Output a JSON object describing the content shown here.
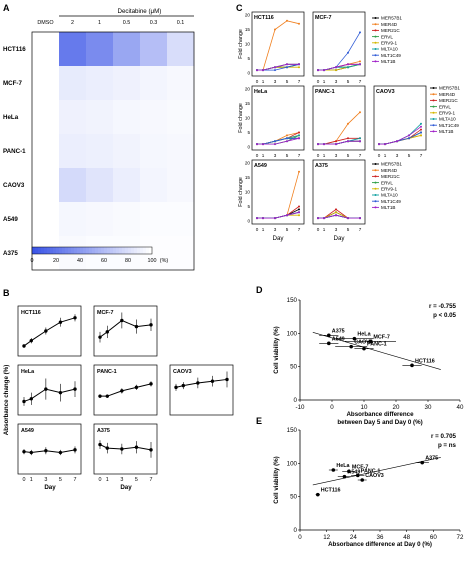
{
  "panel_labels": [
    "A",
    "B",
    "C",
    "D",
    "E"
  ],
  "colors": {
    "heat_high": "#3b55e6",
    "heat_low": "#ffffff",
    "series": [
      "#000000",
      "#f07f1e",
      "#cc2020",
      "#2e9e47",
      "#d4b800",
      "#0d9f9f",
      "#2f5bd6",
      "#a020c8"
    ]
  },
  "chart_data": [
    {
      "id": "A",
      "type": "heatmap",
      "xlabel": "Decitabine (μM)",
      "columns": [
        "DMSO",
        "2",
        "1",
        "0.5",
        "0.3",
        "0.1"
      ],
      "rows": [
        "HCT116",
        "MCF-7",
        "HeLa",
        "PANC-1",
        "CAOV3",
        "A549",
        "A375"
      ],
      "values": [
        [
          100,
          22,
          32,
          48,
          62,
          80
        ],
        [
          100,
          88,
          90,
          92,
          94,
          96
        ],
        [
          100,
          92,
          93,
          95,
          96,
          97
        ],
        [
          100,
          90,
          91,
          93,
          95,
          96
        ],
        [
          100,
          78,
          84,
          90,
          94,
          96
        ],
        [
          100,
          95,
          96,
          97,
          98,
          98
        ],
        [
          100,
          97,
          98,
          98,
          99,
          99
        ]
      ],
      "colorbar_ticks": [
        "0",
        "20",
        "40",
        "60",
        "80",
        "100"
      ],
      "colorbar_unit": "(%)",
      "colorbar_range": [
        0,
        100
      ]
    },
    {
      "id": "B",
      "type": "line",
      "ylabel": "Absorbance change (%)",
      "xlabel": "Day",
      "x": [
        0,
        1,
        3,
        5,
        7
      ],
      "x_ticks": [
        "0",
        "1",
        "3",
        "5",
        "7"
      ],
      "ylim": [
        0,
        50
      ],
      "y_ticks": [
        0,
        25,
        50
      ],
      "panels": [
        {
          "label": "HCT116",
          "values": [
            8,
            14,
            25,
            35,
            40
          ],
          "err": [
            2,
            3,
            4,
            5,
            4
          ]
        },
        {
          "label": "MCF-7",
          "values": [
            18,
            24,
            37,
            30,
            32
          ],
          "err": [
            6,
            7,
            9,
            8,
            7
          ]
        },
        {
          "label": "HeLa",
          "values": [
            12,
            15,
            26,
            22,
            26
          ],
          "err": [
            5,
            7,
            12,
            10,
            9
          ]
        },
        {
          "label": "PANC-1",
          "values": [
            18,
            18,
            24,
            28,
            32
          ],
          "err": [
            2,
            2,
            3,
            3,
            3
          ]
        },
        {
          "label": "CAOV3",
          "values": [
            28,
            30,
            33,
            35,
            37
          ],
          "err": [
            4,
            4,
            6,
            6,
            9
          ]
        },
        {
          "label": "A549",
          "values": [
            22,
            21,
            23,
            21,
            24
          ],
          "err": [
            3,
            3,
            4,
            3,
            4
          ]
        },
        {
          "label": "A375",
          "values": [
            30,
            26,
            25,
            27,
            24
          ],
          "err": [
            5,
            6,
            6,
            7,
            9
          ]
        }
      ]
    },
    {
      "id": "C",
      "type": "line",
      "ylabel": "Fold change",
      "xlabel": "Day",
      "x": [
        0,
        1,
        3,
        5,
        7
      ],
      "x_ticks": [
        "0",
        "1",
        "3",
        "5",
        "7"
      ],
      "y_ticks": [
        0,
        5,
        10,
        15,
        20
      ],
      "ylim": [
        0,
        20
      ],
      "legend": [
        "MER57B1",
        "MER4D",
        "MER21C",
        "ERVL",
        "ERV9-1",
        "MLTA10",
        "MLT1C49",
        "MLT1B"
      ],
      "panels": [
        {
          "label": "HCT116",
          "series": [
            [
              1,
              1,
              2,
              2,
              3
            ],
            [
              1,
              1,
              15,
              18,
              17
            ],
            [
              1,
              1,
              2,
              3,
              3
            ],
            [
              1,
              1,
              2,
              2,
              3
            ],
            [
              1,
              1,
              2,
              2,
              2
            ],
            [
              1,
              1,
              2,
              3,
              3
            ],
            [
              1,
              1,
              1,
              2,
              3
            ],
            [
              1,
              1,
              2,
              3,
              3
            ]
          ]
        },
        {
          "label": "MCF-7",
          "series": [
            [
              1,
              1,
              1,
              2,
              3
            ],
            [
              1,
              1,
              2,
              3,
              4
            ],
            [
              1,
              1,
              2,
              3,
              3
            ],
            [
              1,
              1,
              2,
              2,
              3
            ],
            [
              1,
              1,
              1,
              2,
              3
            ],
            [
              1,
              1,
              2,
              2,
              3
            ],
            [
              1,
              1,
              2,
              7,
              14
            ],
            [
              1,
              1,
              2,
              3,
              3
            ]
          ]
        },
        {
          "label": "HeLa",
          "series": [
            [
              1,
              1,
              2,
              3,
              3
            ],
            [
              1,
              1,
              2,
              4,
              5
            ],
            [
              1,
              1,
              2,
              3,
              5
            ],
            [
              1,
              1,
              1,
              2,
              4
            ],
            [
              1,
              1,
              2,
              3,
              4
            ],
            [
              1,
              1,
              2,
              3,
              4
            ],
            [
              1,
              1,
              2,
              3,
              3
            ],
            [
              1,
              1,
              1,
              2,
              3
            ]
          ]
        },
        {
          "label": "PANC-1",
          "series": [
            [
              1,
              1,
              1,
              2,
              2
            ],
            [
              1,
              1,
              2,
              8,
              12
            ],
            [
              1,
              1,
              2,
              3,
              3
            ],
            [
              1,
              1,
              1,
              2,
              2
            ],
            [
              1,
              1,
              1,
              2,
              2
            ],
            [
              1,
              1,
              1,
              2,
              3
            ],
            [
              1,
              1,
              1,
              2,
              2
            ],
            [
              1,
              1,
              1,
              2,
              2
            ]
          ]
        },
        {
          "label": "CAOV3",
          "series": [
            [
              1,
              1,
              2,
              3,
              5
            ],
            [
              1,
              1,
              2,
              3,
              4
            ],
            [
              1,
              1,
              2,
              3,
              6
            ],
            [
              1,
              1,
              2,
              3,
              5
            ],
            [
              1,
              1,
              2,
              3,
              4
            ],
            [
              1,
              1,
              2,
              4,
              8
            ],
            [
              1,
              1,
              2,
              3,
              5
            ],
            [
              1,
              1,
              2,
              4,
              7
            ]
          ]
        },
        {
          "label": "A549",
          "series": [
            [
              1,
              1,
              1,
              2,
              4
            ],
            [
              1,
              1,
              1,
              2,
              17
            ],
            [
              1,
              1,
              1,
              2,
              5
            ],
            [
              1,
              1,
              1,
              2,
              3
            ],
            [
              1,
              1,
              1,
              2,
              2
            ],
            [
              1,
              1,
              1,
              2,
              3
            ],
            [
              1,
              1,
              1,
              2,
              3
            ],
            [
              1,
              1,
              1,
              2,
              3
            ]
          ]
        },
        {
          "label": "A375",
          "series": [
            [
              1,
              1,
              3,
              1,
              1
            ],
            [
              1,
              1,
              2,
              1,
              1
            ],
            [
              1,
              1,
              4,
              1,
              1
            ],
            [
              1,
              1,
              2,
              1,
              1
            ],
            [
              1,
              1,
              3,
              1,
              1
            ],
            [
              1,
              1,
              2,
              1,
              1
            ],
            [
              1,
              1,
              2,
              1,
              1
            ],
            [
              1,
              1,
              2,
              1,
              1
            ]
          ]
        }
      ]
    },
    {
      "id": "D",
      "type": "scatter",
      "ylabel": "Cell viability (%)",
      "xlabel": "Absorbance difference\nbetween Day 5 and Day 0 (%)",
      "xlim": [
        -10,
        40
      ],
      "ylim": [
        0,
        150
      ],
      "x_ticks": [
        -10,
        0,
        10,
        20,
        30,
        40
      ],
      "y_ticks": [
        0,
        50,
        100,
        150
      ],
      "annotation": [
        "r = -0.755",
        "p < 0.05"
      ],
      "points": [
        {
          "label": "A375",
          "x": -1,
          "y": 97,
          "xerr": 3
        },
        {
          "label": "HeLa",
          "x": 7,
          "y": 92,
          "xerr": 6
        },
        {
          "label": "MCF-7",
          "x": 12,
          "y": 88,
          "xerr": 8
        },
        {
          "label": "A549",
          "x": -1,
          "y": 85,
          "xerr": 3
        },
        {
          "label": "CAOV3",
          "x": 6,
          "y": 80,
          "xerr": 5
        },
        {
          "label": "PANC-1",
          "x": 10,
          "y": 77,
          "xerr": 3
        },
        {
          "label": "HCT116",
          "x": 25,
          "y": 52,
          "xerr": 3
        }
      ]
    },
    {
      "id": "E",
      "type": "scatter",
      "ylabel": "Cell viability (%)",
      "xlabel": "Absorbance difference at Day 0 (%)",
      "xlim": [
        0,
        72
      ],
      "ylim": [
        0,
        150
      ],
      "x_ticks": [
        0,
        12,
        24,
        36,
        48,
        60,
        72
      ],
      "y_ticks": [
        0,
        50,
        100,
        150
      ],
      "annotation": [
        "r = 0.705",
        "p = ns"
      ],
      "points": [
        {
          "label": "HeLa",
          "x": 15,
          "y": 90,
          "xerr": 2
        },
        {
          "label": "MCF-7",
          "x": 22,
          "y": 88,
          "xerr": 3
        },
        {
          "label": "PANC-1",
          "x": 26,
          "y": 82,
          "xerr": 3
        },
        {
          "label": "A549",
          "x": 20,
          "y": 80,
          "xerr": 3
        },
        {
          "label": "CAOV3",
          "x": 28,
          "y": 75,
          "xerr": 2
        },
        {
          "label": "A375",
          "x": 55,
          "y": 101,
          "xerr": 3
        },
        {
          "label": "HCT116",
          "x": 8,
          "y": 53,
          "xerr": 1
        }
      ]
    }
  ]
}
